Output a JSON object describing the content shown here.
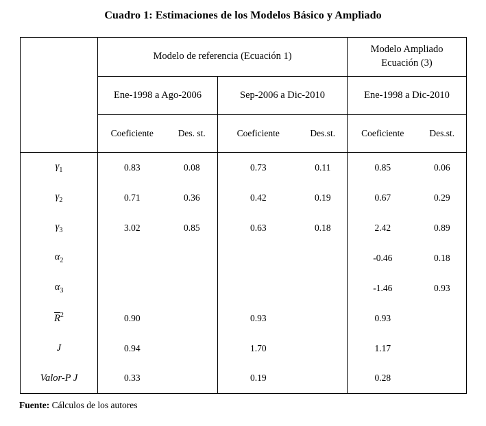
{
  "title": "Cuadro 1: Estimaciones de los Modelos Básico y Ampliado",
  "table": {
    "group_header_left": "Modelo de referencia (Ecuación 1)",
    "group_header_right_line1": "Modelo Ampliado",
    "group_header_right_line2": "Ecuación (3)",
    "periods": [
      "Ene-1998 a Ago-2006",
      "Sep-2006 a Dic-2010",
      "Ene-1998 a Dic-2010"
    ],
    "subheaders": [
      "Coeficiente",
      "Des. st.",
      "Coeficiente",
      "Des.st.",
      "Coeficiente",
      "Des.st."
    ],
    "rows": [
      {
        "label": {
          "text": "γ",
          "sub": "1"
        },
        "values": [
          "0.83",
          "0.08",
          "0.73",
          "0.11",
          "0.85",
          "0.06"
        ]
      },
      {
        "label": {
          "text": "γ",
          "sub": "2"
        },
        "values": [
          "0.71",
          "0.36",
          "0.42",
          "0.19",
          "0.67",
          "0.29"
        ]
      },
      {
        "label": {
          "text": "γ",
          "sub": "3"
        },
        "values": [
          "3.02",
          "0.85",
          "0.63",
          "0.18",
          "2.42",
          "0.89"
        ]
      },
      {
        "label": {
          "text": "α",
          "sub": "2"
        },
        "values": [
          "",
          "",
          "",
          "",
          "-0.46",
          "0.18"
        ]
      },
      {
        "label": {
          "text": "α",
          "sub": "3"
        },
        "values": [
          "",
          "",
          "",
          "",
          "-1.46",
          "0.93"
        ]
      },
      {
        "label": {
          "text": "R",
          "overline": true,
          "sup": "2"
        },
        "values": [
          "0.90",
          "",
          "0.93",
          "",
          "0.93",
          ""
        ]
      },
      {
        "label": {
          "text": "J"
        },
        "values": [
          "0.94",
          "",
          "1.70",
          "",
          "1.17",
          ""
        ]
      },
      {
        "label": {
          "text": "Valor-P J"
        },
        "values": [
          "0.33",
          "",
          "0.19",
          "",
          "0.28",
          ""
        ]
      }
    ]
  },
  "footer": {
    "label": "Fuente:",
    "text": "Cálculos de los autores"
  },
  "colors": {
    "background": "#ffffff",
    "text": "#000000",
    "border": "#000000"
  }
}
